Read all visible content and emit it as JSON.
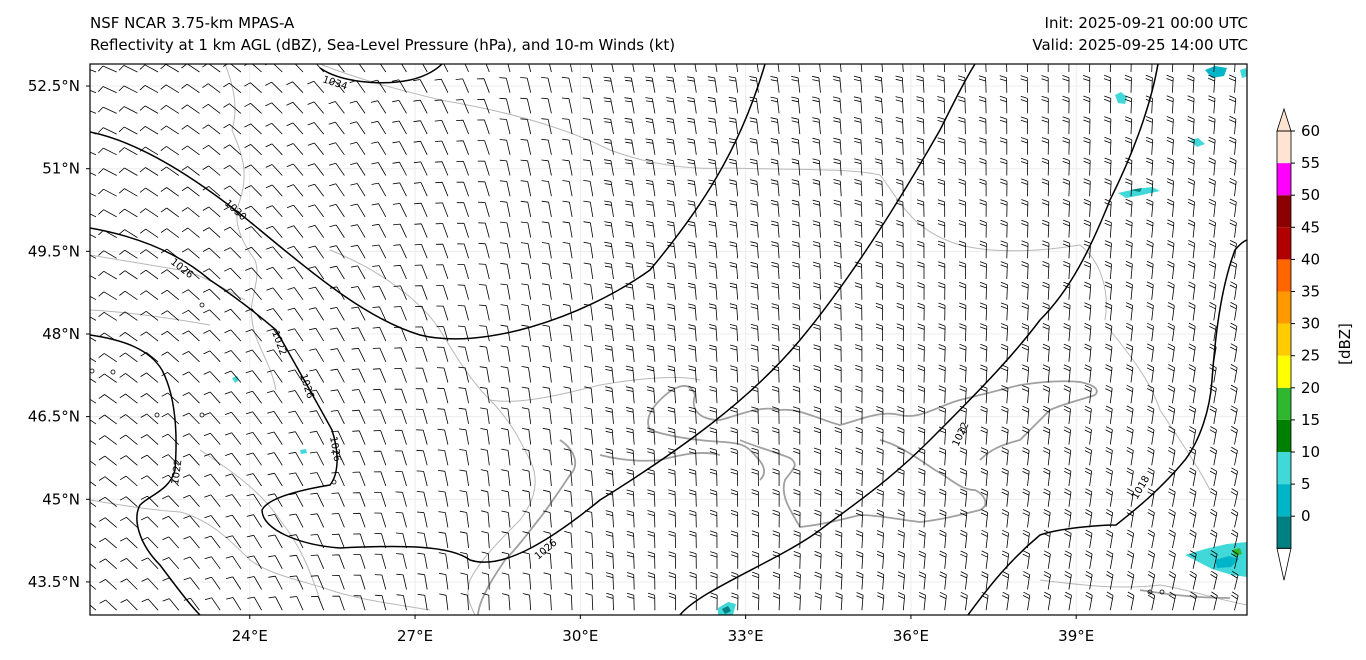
{
  "header": {
    "left_line1": "NSF NCAR 3.75-km MPAS-A",
    "left_line2": "Reflectivity at 1 km AGL (dBZ), Sea-Level Pressure (hPa), and 10-m Winds (kt)",
    "right_line1": "Init: 2025-09-21 00:00 UTC",
    "right_line2": "Valid: 2025-09-25 14:00 UTC"
  },
  "map": {
    "lon_range": [
      21.1,
      42.1
    ],
    "lat_range": [
      42.9,
      52.9
    ],
    "lat_labels": [
      "52.5°N",
      "51°N",
      "49.5°N",
      "48°N",
      "46.5°N",
      "45°N",
      "43.5°N"
    ],
    "lat_values": [
      52.5,
      51,
      49.5,
      48,
      46.5,
      45,
      43.5
    ],
    "lon_labels": [
      "24°E",
      "27°E",
      "30°E",
      "33°E",
      "36°E",
      "39°E"
    ],
    "lon_values": [
      24,
      27,
      30,
      33,
      36,
      39
    ],
    "isobar_labels": [
      "1034",
      "1030",
      "1026",
      "1022",
      "1026",
      "1026",
      "1022",
      "1026",
      "1022",
      "1018"
    ]
  },
  "colorbar": {
    "unit_label": "[dBZ]",
    "ticks": [
      "0",
      "5",
      "10",
      "15",
      "20",
      "25",
      "30",
      "35",
      "40",
      "45",
      "50",
      "55",
      "60"
    ],
    "colors": [
      "#008080",
      "#00b5c8",
      "#40d8d8",
      "#008000",
      "#2fb82f",
      "#ffff00",
      "#ffcc00",
      "#ff9900",
      "#ff6600",
      "#b00000",
      "#8b0000",
      "#ff00ff",
      "#ffe4d4"
    ]
  }
}
